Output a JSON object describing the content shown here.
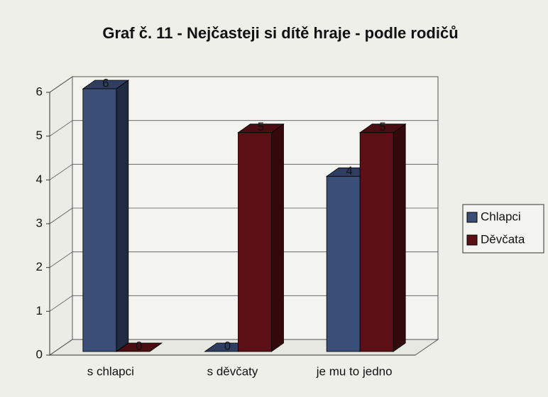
{
  "chart_data": {
    "type": "bar3d",
    "title": "Graf č. 11 - Nejčasteji si dítě hraje - podle rodičů",
    "categories": [
      "s chlapci",
      "s děvčaty",
      "je mu to jedno"
    ],
    "series": [
      {
        "name": "Chlapci",
        "color": "#3b4e78",
        "values": [
          6,
          0,
          4
        ]
      },
      {
        "name": "Děvčata",
        "color": "#5c1016",
        "values": [
          0,
          5,
          5
        ]
      }
    ],
    "ylim": [
      0,
      6
    ],
    "yticks": [
      0,
      1,
      2,
      3,
      4,
      5,
      6
    ],
    "grid": true,
    "legend": "right"
  }
}
